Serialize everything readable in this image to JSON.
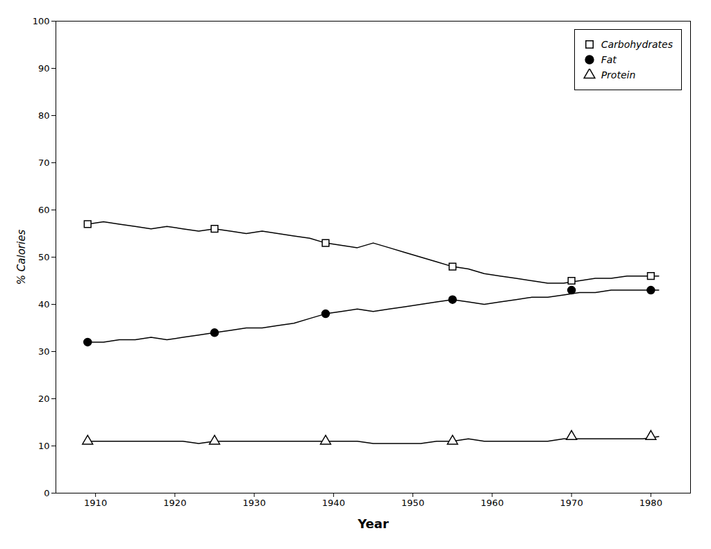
{
  "chart_data": {
    "type": "line",
    "xlabel": "Year",
    "ylabel": "% Calories",
    "xlim": [
      1905,
      1985
    ],
    "ylim": [
      0,
      100
    ],
    "xticks": [
      1910,
      1920,
      1930,
      1940,
      1950,
      1960,
      1970,
      1980
    ],
    "yticks": [
      0,
      10,
      20,
      30,
      40,
      50,
      60,
      70,
      80,
      90,
      100
    ],
    "grid": false,
    "legend": "upper right",
    "x": [
      1909,
      1911,
      1913,
      1915,
      1917,
      1919,
      1921,
      1923,
      1925,
      1927,
      1929,
      1931,
      1933,
      1935,
      1937,
      1939,
      1941,
      1943,
      1945,
      1947,
      1949,
      1951,
      1953,
      1955,
      1957,
      1959,
      1961,
      1963,
      1965,
      1967,
      1969,
      1971,
      1973,
      1975,
      1977,
      1979,
      1981
    ],
    "series": [
      {
        "name": "Carbohydrates",
        "color": "black",
        "marker": "square_open",
        "values": [
          57,
          57.5,
          57,
          56.5,
          56,
          56.5,
          56,
          55.5,
          56,
          55.5,
          55,
          55.5,
          55,
          54.5,
          54,
          53,
          52.5,
          52,
          53,
          52,
          51,
          50,
          49,
          48,
          47.5,
          46.5,
          46,
          45.5,
          45,
          44.5,
          44.5,
          45,
          45.5,
          45.5,
          46,
          46,
          46
        ],
        "markers": {
          "x": [
            1909,
            1925,
            1939,
            1955,
            1970,
            1980
          ],
          "y": [
            57,
            56,
            53,
            48,
            45,
            46
          ]
        }
      },
      {
        "name": "Fat",
        "color": "black",
        "marker": "circle_filled",
        "values": [
          32,
          32,
          32.5,
          32.5,
          33,
          32.5,
          33,
          33.5,
          34,
          34.5,
          35,
          35,
          35.5,
          36,
          37,
          38,
          38.5,
          39,
          38.5,
          39,
          39.5,
          40,
          40.5,
          41,
          40.5,
          40,
          40.5,
          41,
          41.5,
          41.5,
          42,
          42.5,
          42.5,
          43,
          43,
          43,
          43
        ],
        "markers": {
          "x": [
            1909,
            1925,
            1939,
            1955,
            1970,
            1980
          ],
          "y": [
            32,
            34,
            38,
            41,
            43,
            43
          ]
        }
      },
      {
        "name": "Protein",
        "color": "black",
        "marker": "triangle_open",
        "values": [
          11,
          11,
          11,
          11,
          11,
          11,
          11,
          10.5,
          11,
          11,
          11,
          11,
          11,
          11,
          11,
          11,
          11,
          11,
          10.5,
          10.5,
          10.5,
          10.5,
          11,
          11,
          11.5,
          11,
          11,
          11,
          11,
          11,
          11.5,
          11.5,
          11.5,
          11.5,
          11.5,
          11.5,
          12
        ],
        "markers": {
          "x": [
            1909,
            1925,
            1939,
            1955,
            1970,
            1980
          ],
          "y": [
            11,
            11,
            11,
            11,
            12,
            12
          ]
        }
      }
    ]
  }
}
